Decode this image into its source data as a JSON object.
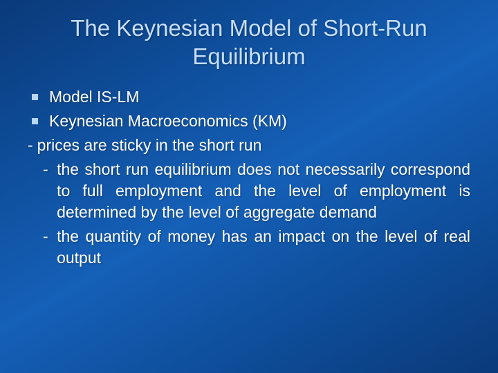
{
  "slide": {
    "title": "The Keynesian Model of Short-Run Equilibrium",
    "bullets": [
      {
        "text": "Model IS-LM"
      },
      {
        "text": "Keynesian Macroeconomics (KM)"
      }
    ],
    "dashes": [
      {
        "text": "prices are sticky in the short run",
        "indent": 1,
        "justify": false
      },
      {
        "text": "the short run equilibrium does not necessarily correspond to full employment and the level of employment is determined by the level of aggregate demand",
        "indent": 2,
        "justify": true
      },
      {
        "text": "the quantity of money has an impact on the level of real output",
        "indent": 2,
        "justify": true
      }
    ]
  },
  "style": {
    "title_color": "#c7dffb",
    "text_color": "#ffffff",
    "bullet_color": "#b9d5f7",
    "title_fontsize": 33,
    "body_fontsize": 23,
    "background_gradient": [
      "#0a3a7a",
      "#0e4d99",
      "#1560b8",
      "#0e4d99",
      "#0a3a7a"
    ]
  }
}
